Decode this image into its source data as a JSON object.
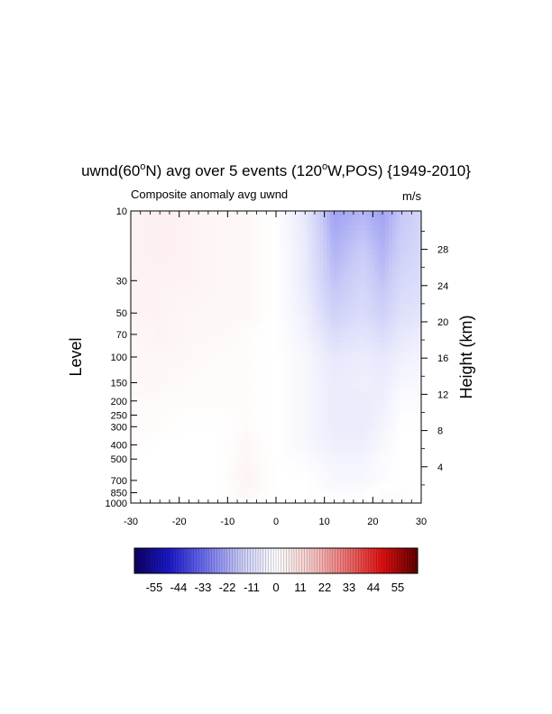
{
  "chart_data": {
    "type": "heatmap",
    "title": {
      "pre": "uwnd(60",
      "sup1": "o",
      "mid": "N) avg over 5 events (120",
      "sup2": "o",
      "post": "W,POS) {1949-2010}"
    },
    "subtitle_left": "Composite anomaly avg uwnd",
    "subtitle_right": "m/s",
    "xlabel": "",
    "ylabel_left": "Level",
    "ylabel_right": "Height (km)",
    "xlim": [
      -30,
      30
    ],
    "x_ticks": [
      "-30",
      "-20",
      "-10",
      "0",
      "10",
      "20",
      "30"
    ],
    "y_axis_scale": "log-pressure",
    "ylim_hpa": [
      1000,
      10
    ],
    "y_ticks": [
      "10",
      "30",
      "50",
      "70",
      "100",
      "150",
      "200",
      "250",
      "300",
      "400",
      "500",
      "700",
      "850",
      "1000"
    ],
    "height_ticks": [
      "4",
      "8",
      "12",
      "16",
      "20",
      "24",
      "28"
    ],
    "colorbar": {
      "range": [
        -55,
        55
      ],
      "tick_labels": [
        "-55",
        "-44",
        "-33",
        "-22",
        "-11",
        "0",
        "11",
        "22",
        "33",
        "44",
        "55"
      ],
      "colors": [
        "#0d0060",
        "#1a1acc",
        "#6e70ee",
        "#c8caf7",
        "#ffffff",
        "#f7c8c8",
        "#ee7070",
        "#e01010",
        "#600000"
      ]
    },
    "values_x": [
      -30,
      -24,
      -18,
      -12,
      -6,
      0,
      6,
      12,
      18,
      22,
      26,
      30
    ],
    "values_p": [
      10,
      20,
      30,
      50,
      70,
      100,
      150,
      200,
      300,
      400,
      500,
      700,
      850,
      1000
    ],
    "values": [
      [
        3,
        4,
        3,
        2,
        2,
        0,
        -6,
        -20,
        -17,
        -20,
        -14,
        -11
      ],
      [
        3,
        4,
        3,
        2,
        2,
        0,
        -5,
        -17,
        -13,
        -17,
        -12,
        -10
      ],
      [
        3,
        3,
        3,
        2,
        2,
        0,
        -5,
        -15,
        -11,
        -15,
        -10,
        -9
      ],
      [
        3,
        3,
        2,
        2,
        2,
        0,
        -4,
        -12,
        -9,
        -12,
        -8,
        -7
      ],
      [
        2,
        3,
        2,
        2,
        1,
        0,
        -3,
        -9,
        -7,
        -9,
        -6,
        -5
      ],
      [
        2,
        2,
        2,
        1,
        1,
        0,
        -2,
        -6,
        -5,
        -6,
        -4,
        -3
      ],
      [
        2,
        2,
        1,
        1,
        1,
        0,
        -2,
        -5,
        -4,
        -5,
        -2,
        -2
      ],
      [
        1,
        1,
        1,
        1,
        1,
        0,
        -2,
        -5,
        -5,
        -4,
        -1,
        -1
      ],
      [
        1,
        1,
        0,
        0,
        1,
        0,
        -2,
        -5,
        -5,
        -3,
        0,
        0
      ],
      [
        1,
        0,
        0,
        0,
        2,
        0,
        -2,
        -4,
        -4,
        -2,
        0,
        0
      ],
      [
        0,
        0,
        0,
        0,
        2,
        0,
        -1,
        -3,
        -3,
        -1,
        0,
        0
      ],
      [
        0,
        0,
        0,
        0,
        3,
        0,
        0,
        -2,
        -2,
        -1,
        0,
        0
      ],
      [
        0,
        0,
        0,
        0,
        2,
        0,
        0,
        -1,
        -1,
        1,
        1,
        0
      ],
      [
        0,
        0,
        0,
        0,
        1,
        0,
        0,
        0,
        0,
        1,
        1,
        0
      ]
    ]
  }
}
